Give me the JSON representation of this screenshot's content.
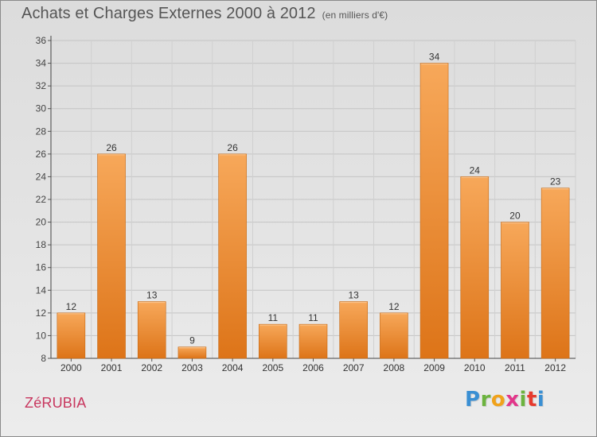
{
  "header": {
    "title": "Achats et Charges Externes 2000 à 2012",
    "unit": "(en milliers d'€)"
  },
  "footer": {
    "commune": "ZéRUBIA",
    "logo_letters": [
      "P",
      "r",
      "o",
      "x",
      "i",
      "t",
      "i"
    ],
    "logo_colors": [
      "#3a8fd3",
      "#6cb33f",
      "#f0a21b",
      "#e2368a",
      "#6cb33f",
      "#e63a2e",
      "#3a8fd3"
    ]
  },
  "chart_data": {
    "type": "bar",
    "categories": [
      "2000",
      "2001",
      "2002",
      "2003",
      "2004",
      "2005",
      "2006",
      "2007",
      "2008",
      "2009",
      "2010",
      "2011",
      "2012"
    ],
    "values": [
      12,
      26,
      13,
      9,
      26,
      11,
      11,
      13,
      12,
      34,
      24,
      20,
      23
    ],
    "data_labels": [
      "12",
      "26",
      "13",
      "9",
      "26",
      "11",
      "11",
      "13",
      "12",
      "34",
      "24",
      "20",
      "23"
    ],
    "title": "Achats et Charges Externes 2000 à 2012",
    "xlabel": "",
    "ylabel": "",
    "ylim": [
      8,
      36
    ],
    "yticks": [
      "8",
      "10",
      "12",
      "14",
      "16",
      "18",
      "20",
      "22",
      "24",
      "26",
      "28",
      "30",
      "32",
      "34",
      "36"
    ],
    "grid": true,
    "bar_color": "#f08a24"
  }
}
